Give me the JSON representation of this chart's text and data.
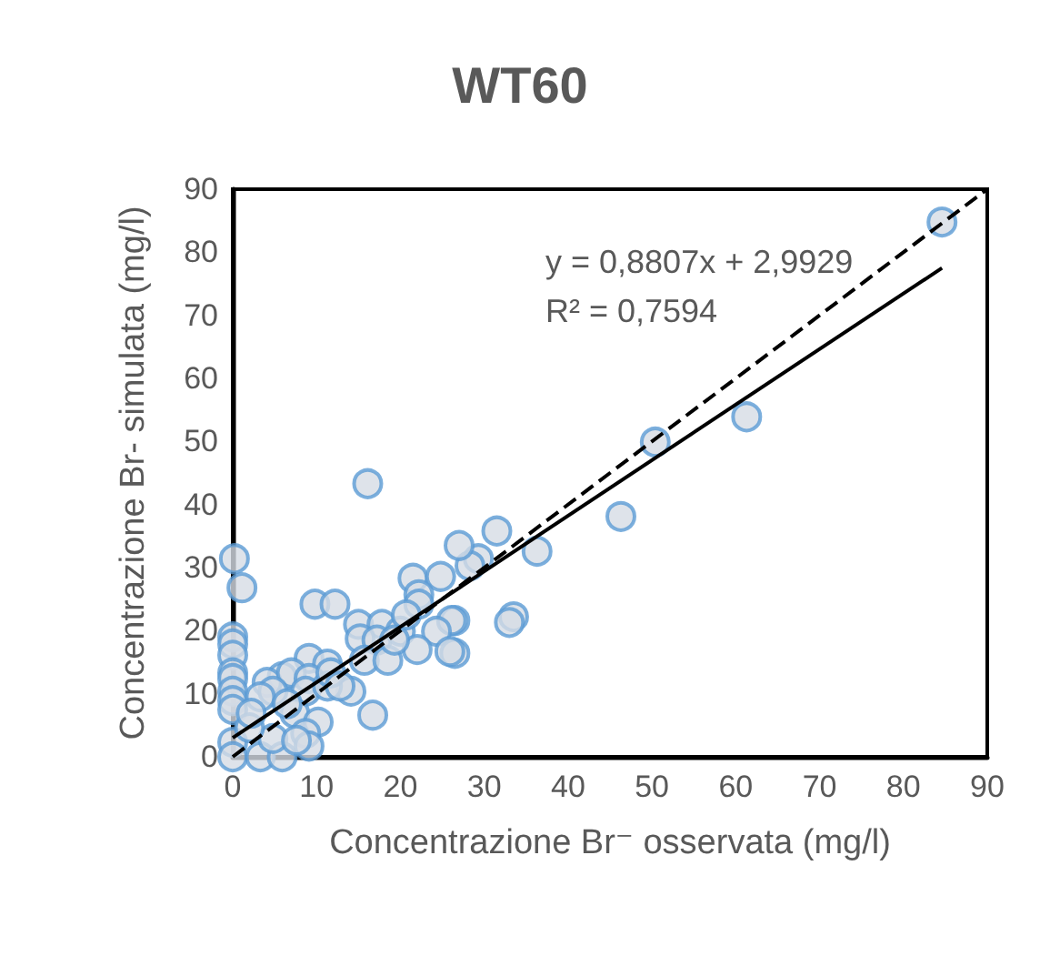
{
  "chart_data": {
    "type": "scatter",
    "title": "WT60",
    "xlabel": "Concentrazione Br⁻ osservata (mg/l)",
    "ylabel": "Concentrazione Br- simulata (mg/l)",
    "annotations": [
      "y = 0,8807x + 2,9929",
      "R² = 0,7594"
    ],
    "xlim": [
      0,
      90
    ],
    "xticks": [
      0,
      10,
      20,
      30,
      40,
      50,
      60,
      70,
      80,
      90
    ],
    "ylim": [
      0,
      90
    ],
    "yticks": [
      0,
      10,
      20,
      30,
      40,
      50,
      60,
      70,
      80,
      90
    ],
    "grid": false,
    "marker": "circle",
    "series": [
      {
        "color": "#d6dce5",
        "x": [
          84.6,
          61.3,
          50.4,
          46.3,
          36.3,
          31.5,
          29.3,
          28.3,
          27,
          33.5,
          33,
          26.5,
          26.5,
          16.1,
          0.2,
          1.1,
          9.8,
          12.2,
          15,
          17.8,
          15.2,
          17.2,
          20,
          21.5,
          24.8,
          22.2,
          22.2,
          20.7,
          26.1,
          24.3,
          22,
          25.9,
          15.7,
          18.5,
          19.3,
          14.1,
          16.7,
          9.1,
          11.3,
          0,
          0,
          0,
          0,
          0,
          0,
          0,
          0,
          0,
          0,
          3.3,
          5.9,
          4.8,
          5.9,
          4.1,
          7,
          4.8,
          3.3,
          9.1,
          8.7,
          11.3,
          11.7,
          7.4,
          6.5,
          10.2,
          8.7,
          9.1,
          7.6,
          2,
          2.2,
          12.8
        ],
        "values": [
          84.8,
          53.9,
          49.9,
          38.1,
          32.6,
          35.8,
          31.4,
          30.3,
          33.5,
          22.2,
          21.3,
          21.6,
          16.4,
          43.3,
          31.4,
          26.8,
          24.2,
          24.2,
          21,
          21,
          18.7,
          18.5,
          19.9,
          28.3,
          28.6,
          25.7,
          24.2,
          22.5,
          21.6,
          19.9,
          17,
          16.7,
          15.3,
          15.3,
          18.5,
          10.4,
          6.6,
          15.6,
          14.7,
          19,
          17.9,
          16.1,
          13.3,
          12.4,
          10.4,
          8.9,
          7.5,
          2.3,
          0,
          0,
          0,
          2.9,
          12.7,
          11.8,
          13.3,
          10.4,
          9.5,
          12.4,
          10.4,
          11.2,
          13.3,
          6.9,
          8.4,
          5.5,
          3.7,
          1.7,
          2.6,
          4.6,
          6.9,
          11.2
        ]
      },
      {
        "type": "line",
        "color": "#000000",
        "line_style": "solid",
        "marker": "none",
        "x": [
          0,
          84.6
        ],
        "values": [
          3,
          77.5
        ]
      },
      {
        "type": "line",
        "color": "#000000",
        "line_style": "dashed",
        "marker": "none",
        "x": [
          0,
          90
        ],
        "values": [
          0,
          90
        ]
      }
    ]
  }
}
